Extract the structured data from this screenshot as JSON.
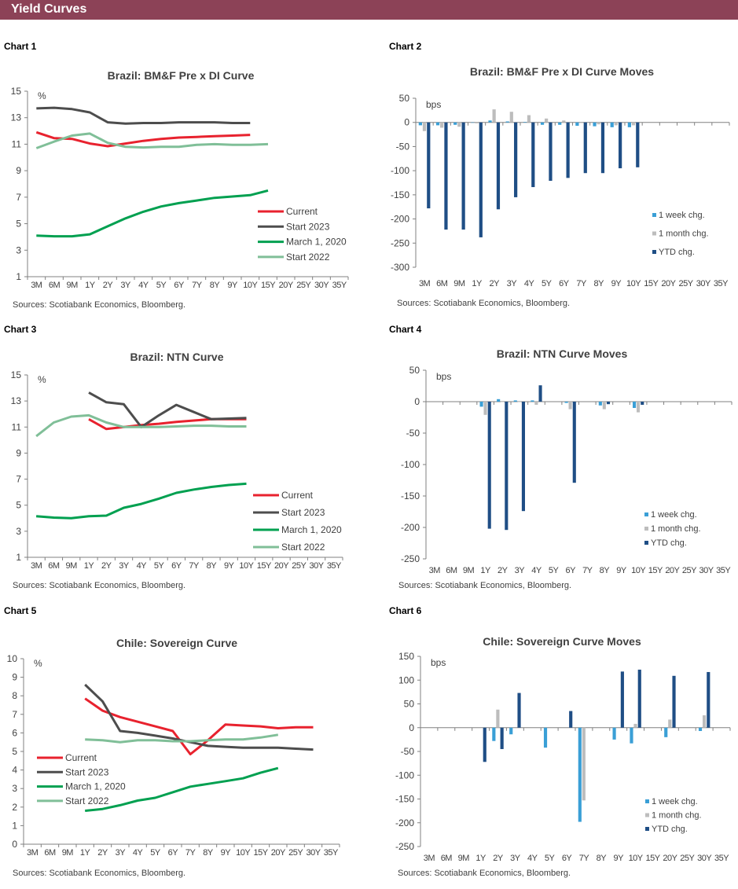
{
  "header": {
    "title": "Yield Curves"
  },
  "source": "Sources: Scotiabank Economics, Bloomberg.",
  "colors": {
    "header": "#8C4257",
    "current": "#E8222E",
    "start2023": "#4D4D4D",
    "march2020": "#00A050",
    "start2022": "#80BF98",
    "week": "#3A9FD6",
    "month": "#BDBDBD",
    "ytd": "#1F4E85"
  },
  "chart_data": [
    {
      "label": "Chart 1",
      "type": "line",
      "title": "Brazil: BM&F Pre x DI Curve",
      "unit": "%",
      "ylim": [
        1,
        15
      ],
      "yticks": [
        1,
        3,
        5,
        7,
        9,
        11,
        13,
        15
      ],
      "legend": "right-middle",
      "categories": [
        "3M",
        "6M",
        "9M",
        "1Y",
        "2Y",
        "3Y",
        "4Y",
        "5Y",
        "6Y",
        "7Y",
        "8Y",
        "9Y",
        "10Y",
        "15Y",
        "20Y",
        "25Y",
        "30Y",
        "35Y"
      ],
      "series": [
        {
          "name": "Current",
          "color": "#E8222E",
          "values": [
            11.9,
            11.45,
            11.4,
            11.05,
            10.85,
            11.05,
            11.25,
            11.4,
            11.5,
            11.55,
            11.6,
            11.65,
            11.7,
            null,
            null,
            null,
            null,
            null
          ]
        },
        {
          "name": "Start 2023",
          "color": "#4D4D4D",
          "values": [
            13.7,
            13.75,
            13.65,
            13.4,
            12.65,
            12.55,
            12.6,
            12.6,
            12.65,
            12.65,
            12.65,
            12.6,
            12.6,
            null,
            null,
            null,
            null,
            null
          ]
        },
        {
          "name": "March 1, 2020",
          "color": "#00A050",
          "values": [
            4.1,
            4.05,
            4.05,
            4.2,
            4.8,
            5.4,
            5.9,
            6.3,
            6.55,
            6.75,
            6.95,
            7.05,
            7.15,
            7.5,
            null,
            null,
            null,
            null
          ]
        },
        {
          "name": "Start 2022",
          "color": "#80BF98",
          "values": [
            10.7,
            11.2,
            11.65,
            11.8,
            11.1,
            10.8,
            10.75,
            10.8,
            10.8,
            10.95,
            11.0,
            10.95,
            10.95,
            11.0,
            null,
            null,
            null,
            null
          ]
        }
      ]
    },
    {
      "label": "Chart 2",
      "type": "bar",
      "title": "Brazil: BM&F Pre x DI Curve Moves",
      "unit": "bps",
      "ylim": [
        -300,
        50
      ],
      "yticks": [
        -300,
        -250,
        -200,
        -150,
        -100,
        -50,
        0,
        50
      ],
      "legend": "right-bottom",
      "categories": [
        "3M",
        "6M",
        "9M",
        "1Y",
        "2Y",
        "3Y",
        "4Y",
        "5Y",
        "6Y",
        "7Y",
        "8Y",
        "9Y",
        "10Y",
        "15Y",
        "20Y",
        "25Y",
        "30Y",
        "35Y"
      ],
      "series": [
        {
          "name": "1 week chg.",
          "color": "#3A9FD6",
          "values": [
            -6,
            -6,
            -5,
            0,
            4,
            2,
            1,
            -5,
            -5,
            -7,
            -8,
            -10,
            -10,
            null,
            null,
            null,
            null,
            null
          ]
        },
        {
          "name": "1 month chg.",
          "color": "#BDBDBD",
          "values": [
            -18,
            -11,
            -9,
            -2,
            27,
            22,
            15,
            8,
            4,
            1,
            -4,
            -6,
            -6,
            null,
            null,
            null,
            null,
            null
          ]
        },
        {
          "name": "YTD chg.",
          "color": "#1F4E85",
          "values": [
            -178,
            -222,
            -222,
            -238,
            -180,
            -155,
            -134,
            -121,
            -115,
            -105,
            -105,
            -95,
            -93,
            null,
            null,
            null,
            null,
            null
          ]
        }
      ]
    },
    {
      "label": "Chart 3",
      "type": "line",
      "title": "Brazil: NTN Curve",
      "unit": "%",
      "ylim": [
        1,
        15
      ],
      "yticks": [
        1,
        3,
        5,
        7,
        9,
        11,
        13,
        15
      ],
      "legend": "right-middle",
      "categories": [
        "3M",
        "6M",
        "9M",
        "1Y",
        "2Y",
        "3Y",
        "4Y",
        "5Y",
        "6Y",
        "7Y",
        "8Y",
        "9Y",
        "10Y",
        "15Y",
        "20Y",
        "25Y",
        "30Y",
        "35Y"
      ],
      "series": [
        {
          "name": "Current",
          "color": "#E8222E",
          "values": [
            null,
            null,
            null,
            11.6,
            10.85,
            11.0,
            11.15,
            11.25,
            11.4,
            11.5,
            11.6,
            11.6,
            11.6,
            null,
            null,
            null,
            null,
            null
          ]
        },
        {
          "name": "Start 2023",
          "color": "#4D4D4D",
          "values": [
            null,
            null,
            null,
            13.65,
            12.9,
            12.75,
            11.0,
            11.9,
            12.7,
            12.15,
            11.6,
            11.65,
            11.7,
            null,
            null,
            null,
            null,
            null
          ]
        },
        {
          "name": "March 1, 2020",
          "color": "#00A050",
          "values": [
            4.15,
            4.05,
            4.0,
            4.15,
            4.2,
            4.8,
            5.1,
            5.5,
            5.95,
            6.2,
            6.4,
            6.55,
            6.65,
            null,
            null,
            null,
            null,
            null
          ]
        },
        {
          "name": "Start 2022",
          "color": "#80BF98",
          "values": [
            10.3,
            11.35,
            11.8,
            11.9,
            11.35,
            11.0,
            11.0,
            11.0,
            11.05,
            11.1,
            11.1,
            11.05,
            11.05,
            null,
            null,
            null,
            null,
            null
          ]
        }
      ]
    },
    {
      "label": "Chart 4",
      "type": "bar",
      "title": "Brazil: NTN Curve Moves",
      "unit": "bps",
      "ylim": [
        -250,
        50
      ],
      "yticks": [
        -250,
        -200,
        -150,
        -100,
        -50,
        0,
        50
      ],
      "legend": "right-bottom",
      "categories": [
        "3M",
        "6M",
        "9M",
        "1Y",
        "2Y",
        "3Y",
        "4Y",
        "5Y",
        "6Y",
        "7Y",
        "8Y",
        "9Y",
        "10Y",
        "15Y",
        "20Y",
        "25Y",
        "30Y",
        "35Y"
      ],
      "series": [
        {
          "name": "1 week chg.",
          "color": "#3A9FD6",
          "values": [
            null,
            null,
            null,
            -8,
            4,
            2,
            2,
            null,
            -2,
            null,
            -6,
            null,
            -10,
            null,
            null,
            null,
            null,
            null
          ]
        },
        {
          "name": "1 month chg.",
          "color": "#BDBDBD",
          "values": [
            null,
            null,
            null,
            -21,
            0,
            0,
            -5,
            null,
            -12,
            null,
            -12,
            null,
            -17,
            null,
            null,
            null,
            null,
            null
          ]
        },
        {
          "name": "YTD chg.",
          "color": "#1F4E85",
          "values": [
            null,
            null,
            null,
            -202,
            -204,
            -174,
            26,
            null,
            -129,
            null,
            -4,
            null,
            -5,
            null,
            null,
            null,
            null,
            null
          ]
        }
      ]
    },
    {
      "label": "Chart 5",
      "type": "line",
      "title": "Chile: Sovereign Curve",
      "unit": "%",
      "ylim": [
        0,
        10
      ],
      "yticks": [
        0,
        1,
        2,
        3,
        4,
        5,
        6,
        7,
        8,
        9,
        10
      ],
      "legend": "left-middle",
      "categories": [
        "3M",
        "6M",
        "9M",
        "1Y",
        "2Y",
        "3Y",
        "4Y",
        "5Y",
        "6Y",
        "7Y",
        "8Y",
        "9Y",
        "10Y",
        "15Y",
        "20Y",
        "25Y",
        "30Y",
        "35Y"
      ],
      "series": [
        {
          "name": "Current",
          "color": "#E8222E",
          "values": [
            null,
            null,
            null,
            7.85,
            7.2,
            6.85,
            6.6,
            6.35,
            6.1,
            4.85,
            5.6,
            6.45,
            6.4,
            6.35,
            6.25,
            6.3,
            6.3,
            null
          ]
        },
        {
          "name": "Start 2023",
          "color": "#4D4D4D",
          "values": [
            null,
            null,
            null,
            8.6,
            7.7,
            6.1,
            6.0,
            5.85,
            5.7,
            5.5,
            5.3,
            5.25,
            5.2,
            5.2,
            5.2,
            5.15,
            5.1,
            null
          ]
        },
        {
          "name": "March 1, 2020",
          "color": "#00A050",
          "values": [
            null,
            null,
            null,
            1.8,
            1.9,
            2.1,
            2.35,
            2.5,
            2.8,
            3.1,
            3.25,
            3.4,
            3.55,
            3.85,
            4.1,
            null,
            null,
            null
          ]
        },
        {
          "name": "Start 2022",
          "color": "#80BF98",
          "values": [
            null,
            null,
            null,
            5.65,
            5.6,
            5.5,
            5.6,
            5.6,
            5.55,
            5.55,
            5.6,
            5.65,
            5.65,
            5.75,
            5.9,
            null,
            null,
            null
          ]
        }
      ]
    },
    {
      "label": "Chart 6",
      "type": "bar",
      "title": "Chile: Sovereign Curve Moves",
      "unit": "bps",
      "ylim": [
        -250,
        150
      ],
      "yticks": [
        -250,
        -200,
        -150,
        -100,
        -50,
        0,
        50,
        100,
        150
      ],
      "legend": "right-bottom",
      "categories": [
        "3M",
        "6M",
        "9M",
        "1Y",
        "2Y",
        "3Y",
        "4Y",
        "5Y",
        "6Y",
        "7Y",
        "8Y",
        "9Y",
        "10Y",
        "15Y",
        "20Y",
        "25Y",
        "30Y",
        "35Y"
      ],
      "series": [
        {
          "name": "1 week chg.",
          "color": "#3A9FD6",
          "values": [
            null,
            null,
            null,
            null,
            -28,
            -14,
            null,
            -42,
            null,
            -198,
            null,
            -25,
            -33,
            null,
            -20,
            null,
            -7,
            null
          ]
        },
        {
          "name": "1 month chg.",
          "color": "#BDBDBD",
          "values": [
            null,
            null,
            null,
            null,
            38,
            null,
            null,
            null,
            null,
            -153,
            null,
            null,
            8,
            null,
            17,
            null,
            26,
            null
          ]
        },
        {
          "name": "YTD chg.",
          "color": "#1F4E85",
          "values": [
            null,
            null,
            null,
            -72,
            -45,
            73,
            null,
            null,
            35,
            null,
            null,
            118,
            122,
            null,
            109,
            null,
            117,
            null
          ]
        }
      ]
    }
  ]
}
